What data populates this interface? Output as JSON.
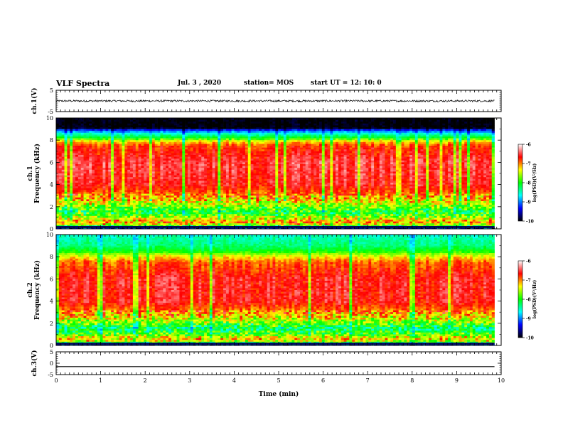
{
  "header": {
    "title": "VLF Spectra",
    "date": "Jul.  3  , 2020",
    "station": "station= MOS",
    "start": "start  UT  =   12: 10: 0"
  },
  "colors": {
    "spectrogram": [
      "#ffffff",
      "#ff0000",
      "#ffff00",
      "#00ff00",
      "#00ffff",
      "#0000ff",
      "#000000"
    ],
    "colorbar": [
      "#000000",
      "#0000ff",
      "#00ffff",
      "#00ff00",
      "#ffff00",
      "#ff0000",
      "#ffffff"
    ]
  },
  "chart_data": [
    {
      "type": "line",
      "panel": "ch1-waveform",
      "ylabel": "ch.1(V)",
      "ylim": [
        -5,
        5
      ],
      "yticks": [
        "5",
        "-5"
      ],
      "xlim": [
        0,
        10
      ],
      "trace_level": 0,
      "description_values": {
        "x_end_min": 9.85
      }
    },
    {
      "type": "heatmap",
      "panel": "ch1-spectrogram",
      "ylabel": [
        "ch.1",
        "Frequency (kHz)"
      ],
      "ylim": [
        0,
        10
      ],
      "yticks": [
        "0",
        "2",
        "4",
        "6",
        "8",
        "10"
      ],
      "xlim": [
        0,
        10
      ],
      "x_end_min": 9.85,
      "colorbar": {
        "label": "log(PSD)(V²/Hz)",
        "range": [
          -10,
          -6
        ],
        "ticks": [
          "-6",
          "-7",
          "-8",
          "-9",
          "-10"
        ]
      },
      "frequency_profile": [
        {
          "f": 0.0,
          "v": -9.8
        },
        {
          "f": 0.3,
          "v": -7.6
        },
        {
          "f": 0.6,
          "v": -7.0
        },
        {
          "f": 1.0,
          "v": -7.5
        },
        {
          "f": 1.5,
          "v": -8.1
        },
        {
          "f": 2.0,
          "v": -7.7
        },
        {
          "f": 2.5,
          "v": -7.3
        },
        {
          "f": 3.0,
          "v": -7.0
        },
        {
          "f": 4.0,
          "v": -6.6
        },
        {
          "f": 6.0,
          "v": -6.5
        },
        {
          "f": 7.5,
          "v": -6.8
        },
        {
          "f": 7.9,
          "v": -7.3
        },
        {
          "f": 8.2,
          "v": -8.0
        },
        {
          "f": 8.6,
          "v": -8.6
        },
        {
          "f": 8.9,
          "v": -9.2
        },
        {
          "f": 9.1,
          "v": -10.0
        },
        {
          "f": 10.0,
          "v": -10.0
        }
      ]
    },
    {
      "type": "heatmap",
      "panel": "ch2-spectrogram",
      "ylabel": [
        "ch.2",
        "Frequency (kHz)"
      ],
      "ylim": [
        0,
        10
      ],
      "yticks": [
        "0",
        "2",
        "4",
        "6",
        "8",
        "10"
      ],
      "xlim": [
        0,
        10
      ],
      "x_end_min": 9.85,
      "colorbar": {
        "label": "log(PSD)(V²/Hz)",
        "range": [
          -10,
          -6
        ],
        "ticks": [
          "-6",
          "-7",
          "-8",
          "-9",
          "-10"
        ]
      },
      "frequency_profile": [
        {
          "f": 0.0,
          "v": -9.8
        },
        {
          "f": 0.3,
          "v": -7.6
        },
        {
          "f": 0.6,
          "v": -7.2
        },
        {
          "f": 1.0,
          "v": -7.8
        },
        {
          "f": 1.5,
          "v": -8.3
        },
        {
          "f": 2.0,
          "v": -7.8
        },
        {
          "f": 2.5,
          "v": -7.3
        },
        {
          "f": 3.0,
          "v": -7.0
        },
        {
          "f": 4.0,
          "v": -6.6
        },
        {
          "f": 6.0,
          "v": -6.6
        },
        {
          "f": 7.5,
          "v": -6.9
        },
        {
          "f": 8.0,
          "v": -7.3
        },
        {
          "f": 8.5,
          "v": -8.0
        },
        {
          "f": 9.0,
          "v": -8.3
        },
        {
          "f": 9.5,
          "v": -8.4
        },
        {
          "f": 10.0,
          "v": -8.5
        }
      ]
    },
    {
      "type": "line",
      "panel": "ch3-waveform",
      "ylabel": "ch.3(V)",
      "ylim": [
        -5,
        5
      ],
      "yticks": [
        "5",
        "0",
        "-5"
      ],
      "xlim": [
        0,
        10
      ],
      "trace_level": -1.5
    }
  ],
  "x_axis": {
    "label": "Time  (min)",
    "ticks": [
      "0",
      "1",
      "2",
      "3",
      "4",
      "5",
      "6",
      "7",
      "8",
      "9",
      "10"
    ]
  }
}
